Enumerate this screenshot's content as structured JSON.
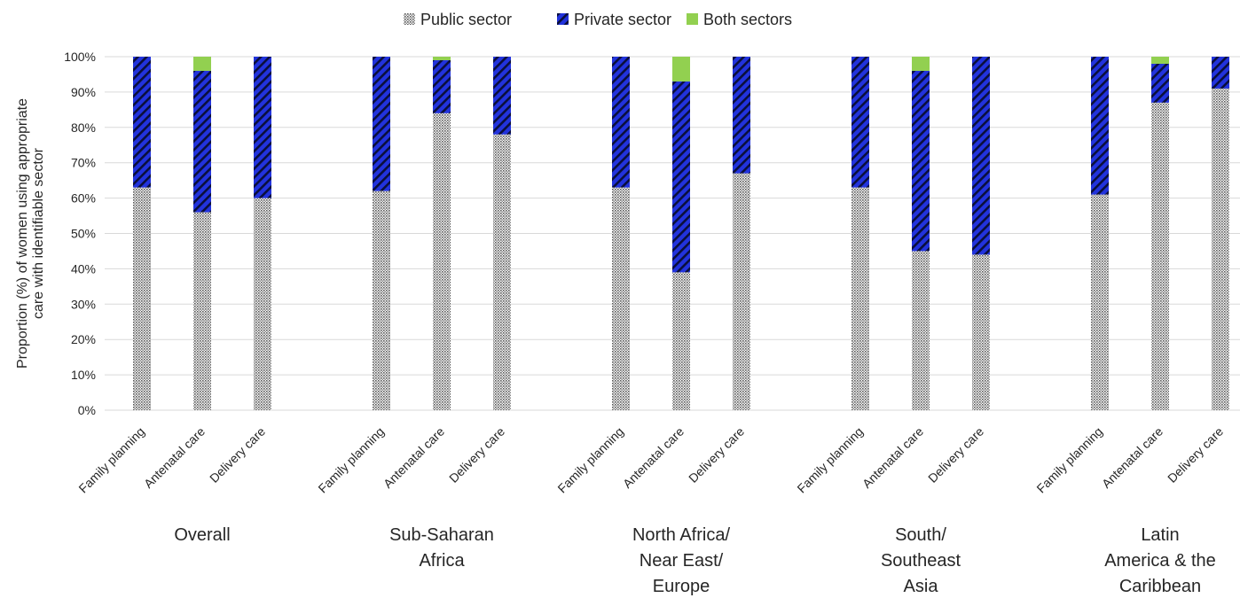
{
  "chart_data": {
    "type": "bar",
    "stacked": true,
    "ylabel": "Proportion (%) of women using appropriate care with identifiable sector",
    "ylabel_lines": [
      "Proportion (%) of women using appropriate",
      "care with identifiable sector"
    ],
    "ylim": [
      0,
      100
    ],
    "yticks": [
      0,
      10,
      20,
      30,
      40,
      50,
      60,
      70,
      80,
      90,
      100
    ],
    "ytick_labels": [
      "0%",
      "10%",
      "20%",
      "30%",
      "40%",
      "50%",
      "60%",
      "70%",
      "80%",
      "90%",
      "100%"
    ],
    "grid": true,
    "legend_position": "top-center",
    "categories": [
      "Family planning",
      "Antenatal care",
      "Delivery care"
    ],
    "groups": [
      {
        "name": "Overall",
        "name_lines": [
          "Overall"
        ]
      },
      {
        "name": "Sub-Saharan Africa",
        "name_lines": [
          "Sub-Saharan",
          "Africa"
        ]
      },
      {
        "name": "North Africa/ Near East/ Europe",
        "name_lines": [
          "North Africa/",
          "Near East/",
          "Europe"
        ]
      },
      {
        "name": "South/ Southeast Asia",
        "name_lines": [
          "South/",
          "Southeast",
          "Asia"
        ]
      },
      {
        "name": "Latin America & the Caribbean",
        "name_lines": [
          "Latin",
          "America & the",
          "Caribbean"
        ]
      }
    ],
    "series": [
      {
        "name": "Public sector",
        "color": "#a6a6a6",
        "pattern": "dots",
        "values": [
          [
            63,
            56,
            60
          ],
          [
            62,
            84,
            78
          ],
          [
            63,
            39,
            67
          ],
          [
            63,
            45,
            44
          ],
          [
            61,
            87,
            91
          ]
        ]
      },
      {
        "name": "Private sector",
        "color": "#2233dd",
        "pattern": "diagonal-stripes",
        "values": [
          [
            37,
            40,
            40
          ],
          [
            38,
            15,
            22
          ],
          [
            37,
            54,
            33
          ],
          [
            37,
            51,
            56
          ],
          [
            39,
            11,
            9
          ]
        ]
      },
      {
        "name": "Both sectors",
        "color": "#92d050",
        "pattern": "solid",
        "values": [
          [
            0,
            4,
            0
          ],
          [
            0,
            1,
            0
          ],
          [
            0,
            7,
            0
          ],
          [
            0,
            4,
            0
          ],
          [
            0,
            2,
            0
          ]
        ]
      }
    ]
  }
}
